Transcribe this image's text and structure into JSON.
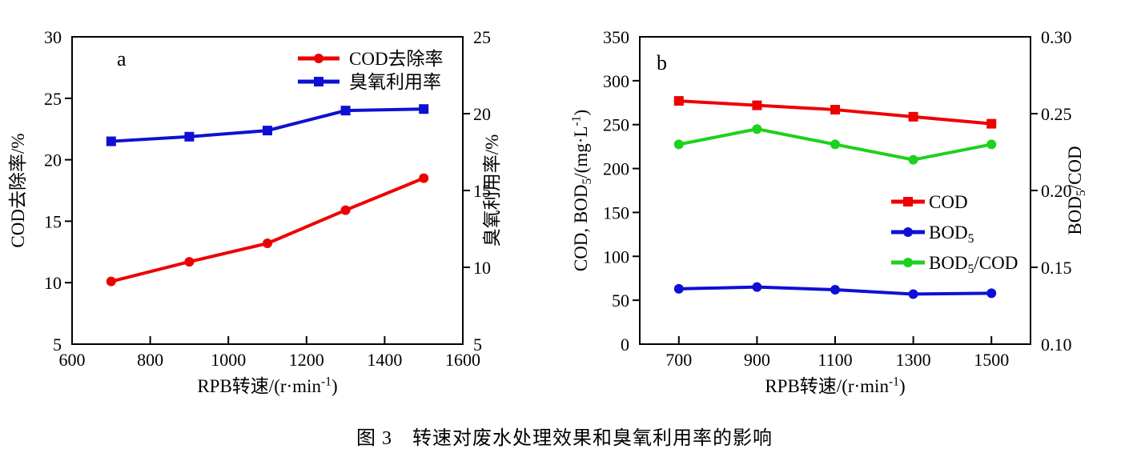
{
  "caption": "图 3　转速对废水处理效果和臭氧利用率的影响",
  "colors": {
    "red": "#ee0000",
    "blue": "#0f0fd4",
    "green": "#1dd11d",
    "axis": "#000000"
  },
  "chart_data": [
    {
      "id": "a",
      "type": "line",
      "panel_label": "a",
      "grid": false,
      "x": [
        700,
        900,
        1100,
        1300,
        1500
      ],
      "xlim": [
        600,
        1600
      ],
      "xticks": [
        600,
        800,
        1000,
        1200,
        1400,
        1600
      ],
      "xtick_labels": [
        "600",
        "800",
        "1000",
        "1200",
        "1400",
        "1600"
      ],
      "xlabel_rich": [
        {
          "t": "RPB转速/(r·min"
        },
        {
          "t": "-1",
          "s": "sup"
        },
        {
          "t": ")"
        }
      ],
      "left_axis": {
        "label_rich": [
          {
            "t": "COD去除率/%"
          }
        ],
        "lim": [
          5,
          30
        ],
        "ticks": [
          5,
          10,
          15,
          20,
          25,
          30
        ],
        "tick_labels": [
          "5",
          "10",
          "15",
          "20",
          "25",
          "30"
        ]
      },
      "right_axis": {
        "label_rich": [
          {
            "t": "臭氧利用率/%"
          }
        ],
        "lim": [
          5,
          25
        ],
        "ticks": [
          5,
          10,
          15,
          20,
          25
        ],
        "tick_labels": [
          "5",
          "10",
          "15",
          "20",
          "25"
        ]
      },
      "series": [
        {
          "name_rich": [
            {
              "t": "COD去除率"
            }
          ],
          "axis": "left",
          "color": "#ee0000",
          "marker": "circle",
          "values": [
            10.1,
            11.7,
            13.2,
            15.9,
            18.5
          ]
        },
        {
          "name_rich": [
            {
              "t": "臭氧利用率"
            }
          ],
          "axis": "right",
          "color": "#0f0fd4",
          "marker": "square",
          "values": [
            18.2,
            18.5,
            18.9,
            20.2,
            20.3
          ]
        }
      ],
      "legend_position": "top-right"
    },
    {
      "id": "b",
      "type": "line",
      "panel_label": "b",
      "grid": false,
      "x": [
        700,
        900,
        1100,
        1300,
        1500
      ],
      "xlim": [
        600,
        1600
      ],
      "xticks": [
        700,
        900,
        1100,
        1300,
        1500
      ],
      "xtick_labels": [
        "700",
        "900",
        "1100",
        "1300",
        "1500"
      ],
      "xlabel_rich": [
        {
          "t": "RPB转速/(r·min"
        },
        {
          "t": "-1",
          "s": "sup"
        },
        {
          "t": ")"
        }
      ],
      "left_axis": {
        "label_rich": [
          {
            "t": "COD, BOD"
          },
          {
            "t": "5",
            "s": "sub"
          },
          {
            "t": "/(mg·L"
          },
          {
            "t": "-1",
            "s": "sup"
          },
          {
            "t": ")"
          }
        ],
        "lim": [
          0,
          350
        ],
        "ticks": [
          0,
          50,
          100,
          150,
          200,
          250,
          300,
          350
        ],
        "tick_labels": [
          "0",
          "50",
          "100",
          "150",
          "200",
          "250",
          "300",
          "350"
        ]
      },
      "right_axis": {
        "label_rich": [
          {
            "t": "BOD"
          },
          {
            "t": "5",
            "s": "sub"
          },
          {
            "t": "/COD"
          }
        ],
        "lim": [
          0.1,
          0.3
        ],
        "ticks": [
          0.1,
          0.15,
          0.2,
          0.25,
          0.3
        ],
        "tick_labels": [
          "0.10",
          "0.15",
          "0.20",
          "0.25",
          "0.30"
        ]
      },
      "series": [
        {
          "name_rich": [
            {
              "t": "COD"
            }
          ],
          "axis": "left",
          "color": "#ee0000",
          "marker": "square",
          "values": [
            277,
            272,
            267,
            259,
            251
          ]
        },
        {
          "name_rich": [
            {
              "t": "BOD"
            },
            {
              "t": "5",
              "s": "sub"
            }
          ],
          "axis": "left",
          "color": "#0f0fd4",
          "marker": "circle",
          "values": [
            63,
            65,
            62,
            57,
            58
          ]
        },
        {
          "name_rich": [
            {
              "t": "BOD"
            },
            {
              "t": "5",
              "s": "sub"
            },
            {
              "t": "/COD"
            }
          ],
          "axis": "right",
          "color": "#1dd11d",
          "marker": "circle",
          "values": [
            0.23,
            0.24,
            0.23,
            0.22,
            0.23
          ]
        }
      ],
      "legend_position": "middle-right"
    }
  ]
}
